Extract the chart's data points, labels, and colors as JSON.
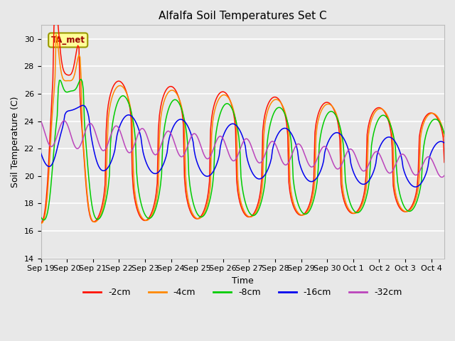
{
  "title": "Alfalfa Soil Temperatures Set C",
  "xlabel": "Time",
  "ylabel": "Soil Temperature (C)",
  "ylim": [
    14,
    31
  ],
  "yticks": [
    14,
    16,
    18,
    20,
    22,
    24,
    26,
    28,
    30
  ],
  "plot_bg_color": "#e8e8e8",
  "annotation_text": "TA_met",
  "annotation_bg": "#ffff99",
  "annotation_border": "#999900",
  "colors": {
    "-2cm": "#ff1100",
    "-4cm": "#ff8800",
    "-8cm": "#00cc00",
    "-16cm": "#0000ee",
    "-32cm": "#bb44bb"
  },
  "x_tick_labels": [
    "Sep 19",
    "Sep 20",
    "Sep 21",
    "Sep 22",
    "Sep 23",
    "Sep 24",
    "Sep 25",
    "Sep 26",
    "Sep 27",
    "Sep 28",
    "Sep 29",
    "Sep 30",
    "Oct 1",
    "Oct 2",
    "Oct 3",
    "Oct 4"
  ]
}
